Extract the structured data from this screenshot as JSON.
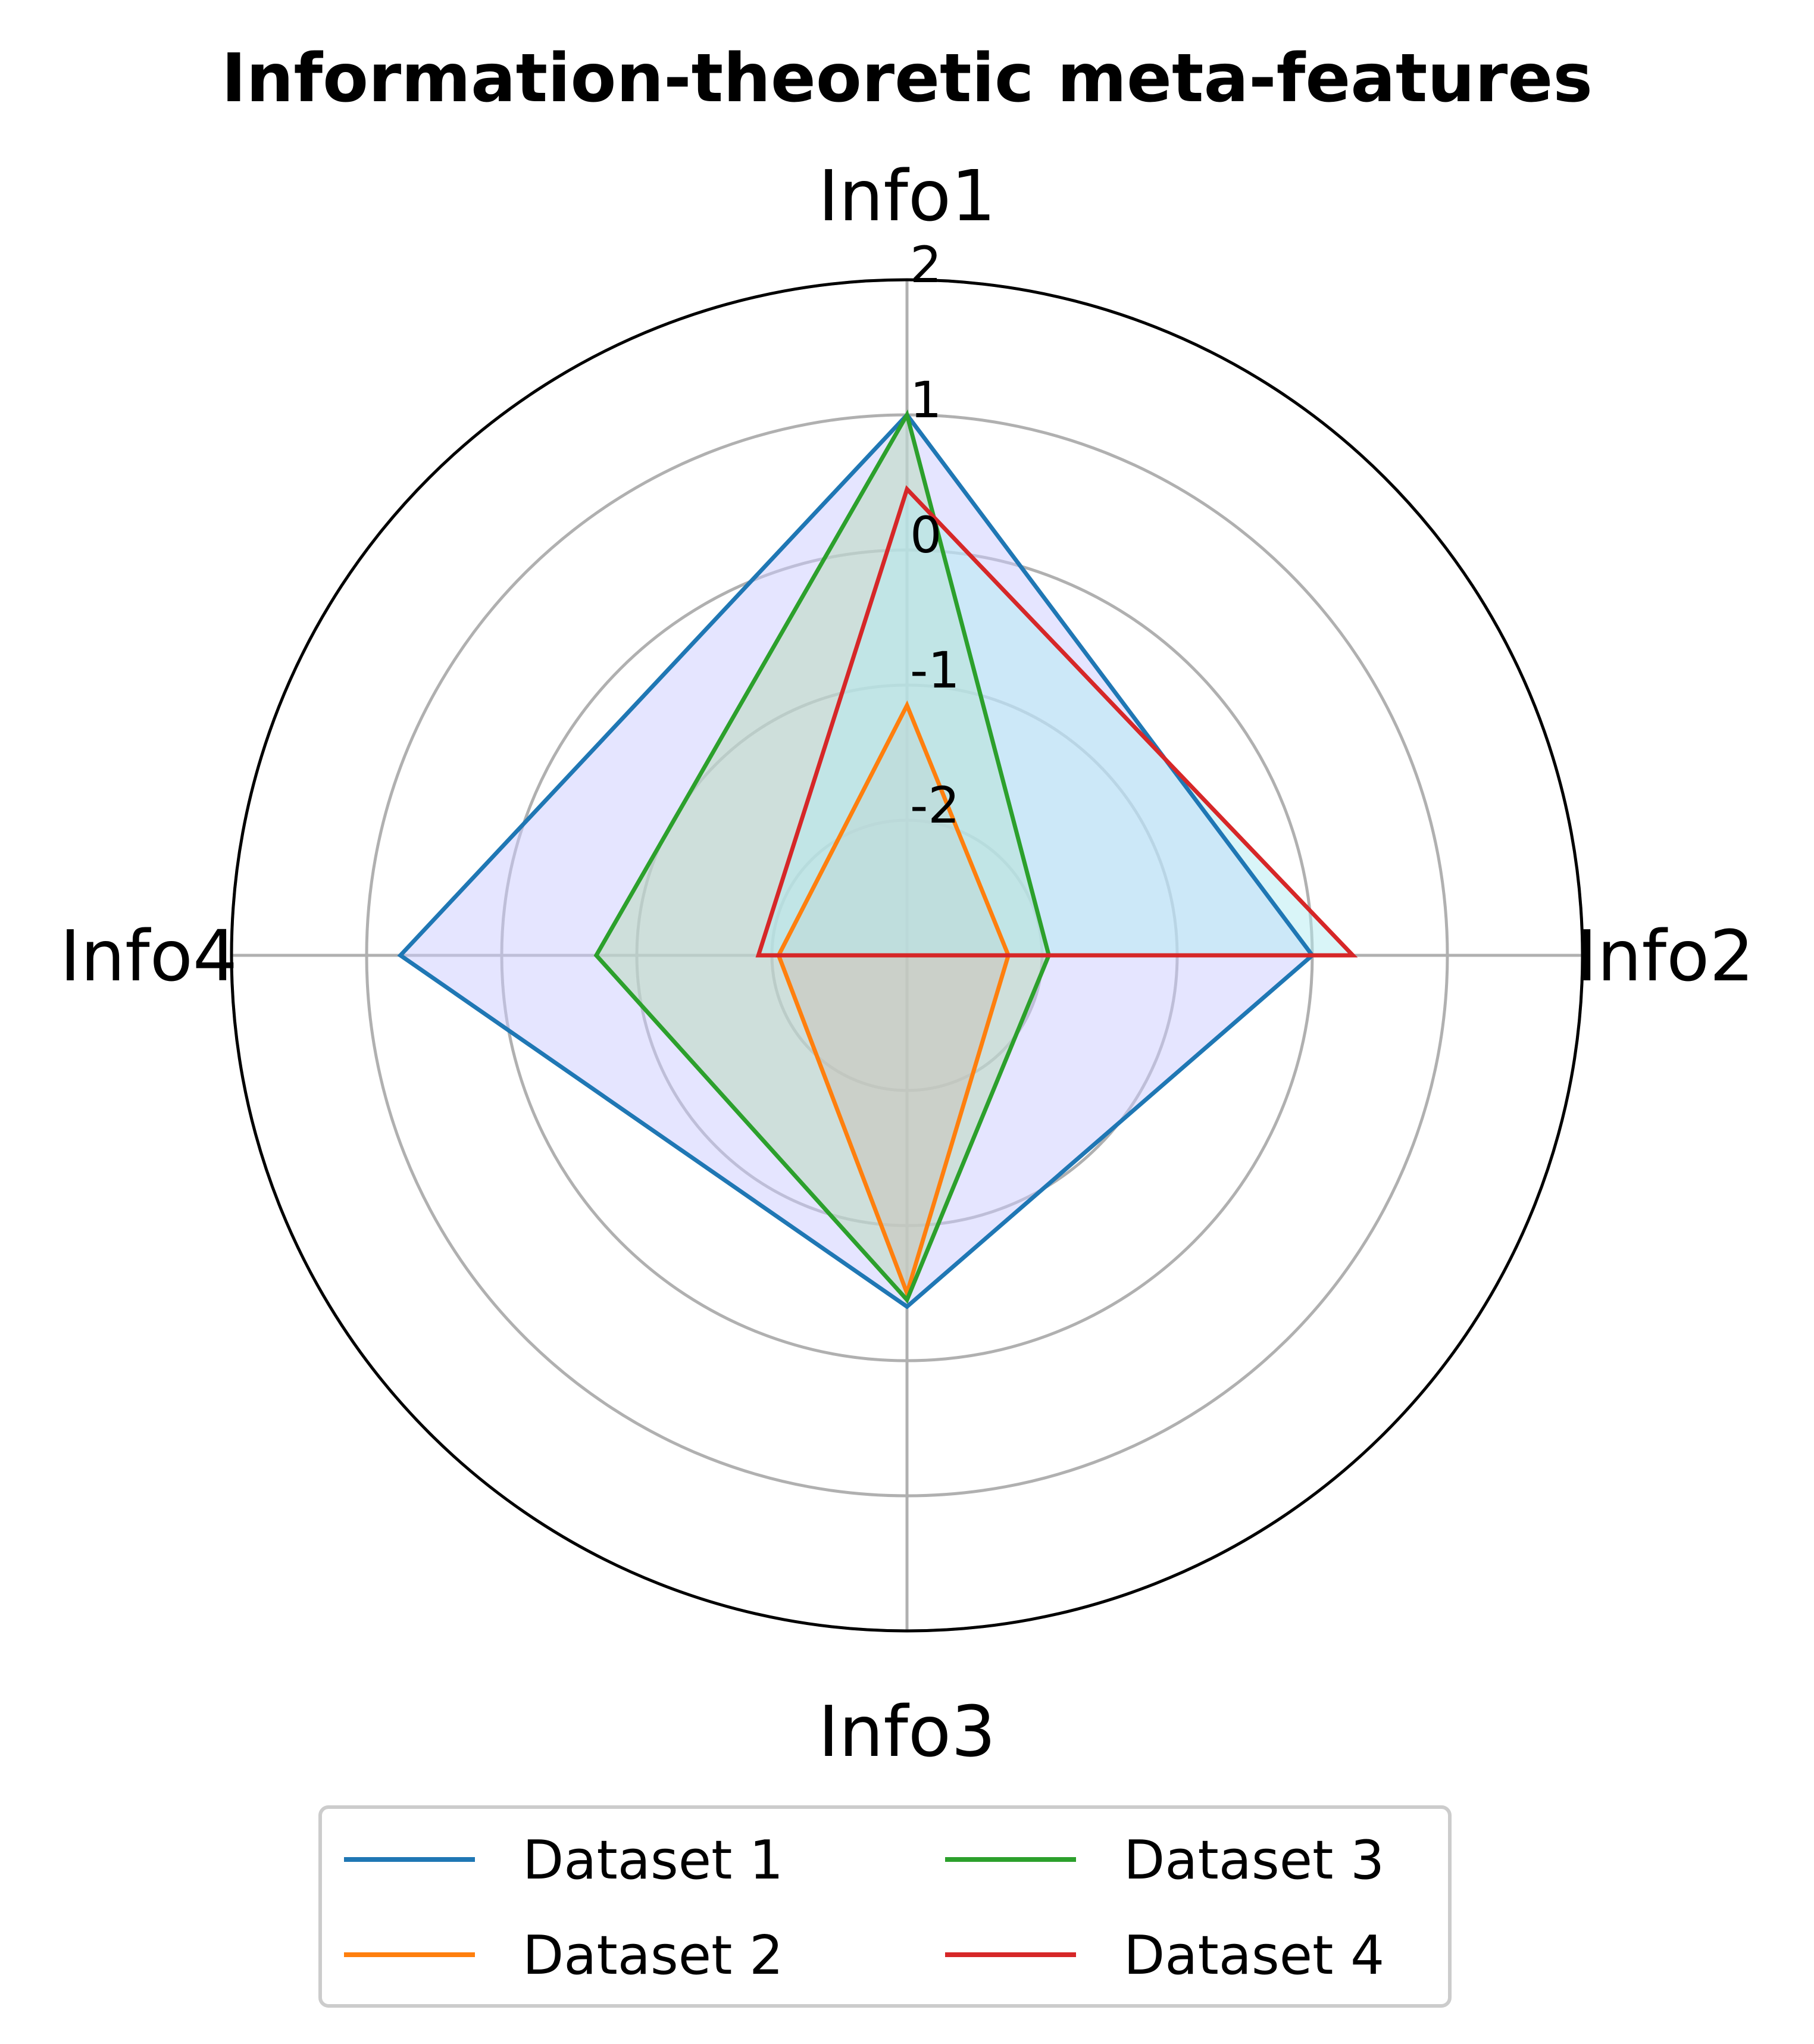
{
  "chart_data": {
    "type": "radar",
    "title": "Information-theoretic meta-features",
    "axes": [
      "Info1",
      "Info2",
      "Info3",
      "Info4"
    ],
    "r_ticks": [
      2,
      1,
      0,
      -1,
      -2
    ],
    "r_range": [
      -3,
      2
    ],
    "grid": true,
    "legend_position": "bottom-center",
    "series": [
      {
        "name": "Dataset 1",
        "values": [
          1.0,
          0.0,
          -0.4,
          0.75
        ],
        "color": "#1f77b4",
        "fill": "#ccccff"
      },
      {
        "name": "Dataset 2",
        "values": [
          -1.15,
          -2.25,
          -0.5,
          -2.05
        ],
        "color": "#ff7f0e",
        "fill": "#d9a9b8"
      },
      {
        "name": "Dataset 3",
        "values": [
          1.0,
          -1.95,
          -0.45,
          -0.7
        ],
        "color": "#2ca02c",
        "fill": "#b8d9b8"
      },
      {
        "name": "Dataset 4",
        "values": [
          0.45,
          0.3,
          -3.0,
          -1.9
        ],
        "color": "#d62728",
        "fill": "#b3ecf2"
      }
    ]
  }
}
